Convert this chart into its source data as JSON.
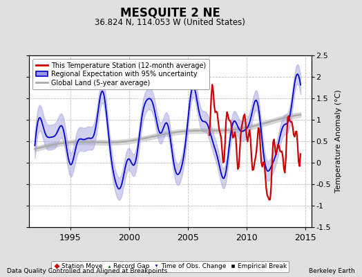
{
  "title": "MESQUITE 2 NE",
  "subtitle": "36.824 N, 114.053 W (United States)",
  "xlabel_left": "Data Quality Controlled and Aligned at Breakpoints",
  "xlabel_right": "Berkeley Earth",
  "ylabel": "Temperature Anomaly (°C)",
  "xlim": [
    1991.5,
    2015.5
  ],
  "ylim": [
    -1.5,
    2.5
  ],
  "yticks": [
    -1.5,
    -1.0,
    -0.5,
    0.0,
    0.5,
    1.0,
    1.5,
    2.0,
    2.5
  ],
  "xticks": [
    1995,
    2000,
    2005,
    2010,
    2015
  ],
  "bg_color": "#e0e0e0",
  "plot_bg_color": "#ffffff",
  "grid_color": "#c0c0c0",
  "red_color": "#cc0000",
  "blue_color": "#0000cc",
  "blue_fill_color": "#9999dd",
  "gray_color": "#aaaaaa",
  "gray_fill_color": "#cccccc",
  "legend1_entries": [
    "This Temperature Station (12-month average)",
    "Regional Expectation with 95% uncertainty",
    "Global Land (5-year average)"
  ],
  "legend2_entries": [
    "Station Move",
    "Record Gap",
    "Time of Obs. Change",
    "Empirical Break"
  ]
}
